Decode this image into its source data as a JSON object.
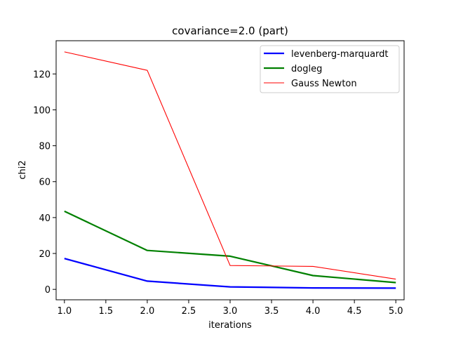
{
  "chart_data": {
    "type": "line",
    "title": "covariance=2.0 (part)",
    "xlabel": "iterations",
    "ylabel": "chi2",
    "xlim": [
      0.9,
      5.1
    ],
    "ylim": [
      -5.8,
      138.5
    ],
    "xticks": [
      "1.0",
      "1.5",
      "2.0",
      "2.5",
      "3.0",
      "3.5",
      "4.0",
      "4.5",
      "5.0"
    ],
    "yticks": [
      "0",
      "20",
      "40",
      "60",
      "80",
      "100",
      "120"
    ],
    "x": [
      1.0,
      2.0,
      3.0,
      4.0,
      5.0
    ],
    "grid": false,
    "legend_position": "top-right",
    "series": [
      {
        "name": "levenberg-marquardt",
        "values": [
          17.2,
          4.6,
          1.4,
          0.8,
          0.7
        ],
        "color": "#0000ff"
      },
      {
        "name": "dogleg",
        "values": [
          43.5,
          21.7,
          18.5,
          7.7,
          3.8
        ],
        "color": "#008000"
      },
      {
        "name": "Gauss Newton",
        "values": [
          132.3,
          122.0,
          13.3,
          12.8,
          5.7
        ],
        "color": "#ff0000"
      }
    ]
  }
}
